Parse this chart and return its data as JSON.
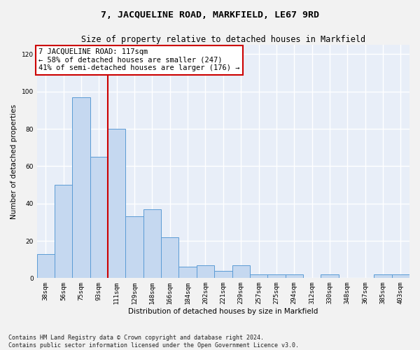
{
  "title": "7, JACQUELINE ROAD, MARKFIELD, LE67 9RD",
  "subtitle": "Size of property relative to detached houses in Markfield",
  "xlabel": "Distribution of detached houses by size in Markfield",
  "ylabel": "Number of detached properties",
  "categories": [
    "38sqm",
    "56sqm",
    "75sqm",
    "93sqm",
    "111sqm",
    "129sqm",
    "148sqm",
    "166sqm",
    "184sqm",
    "202sqm",
    "221sqm",
    "239sqm",
    "257sqm",
    "275sqm",
    "294sqm",
    "312sqm",
    "330sqm",
    "348sqm",
    "367sqm",
    "385sqm",
    "403sqm"
  ],
  "values": [
    13,
    50,
    97,
    65,
    80,
    33,
    37,
    22,
    6,
    7,
    4,
    7,
    2,
    2,
    2,
    0,
    2,
    0,
    0,
    2,
    2
  ],
  "bar_color": "#c5d8f0",
  "bar_edge_color": "#5b9bd5",
  "vline_color": "#cc0000",
  "annotation_text": "7 JACQUELINE ROAD: 117sqm\n← 58% of detached houses are smaller (247)\n41% of semi-detached houses are larger (176) →",
  "annotation_box_color": "#cc0000",
  "ylim": [
    0,
    125
  ],
  "yticks": [
    0,
    20,
    40,
    60,
    80,
    100,
    120
  ],
  "footer": "Contains HM Land Registry data © Crown copyright and database right 2024.\nContains public sector information licensed under the Open Government Licence v3.0.",
  "bg_color": "#e8eef8",
  "grid_color": "#ffffff",
  "fig_bg_color": "#f2f2f2",
  "title_fontsize": 9.5,
  "subtitle_fontsize": 8.5,
  "axis_label_fontsize": 7.5,
  "tick_fontsize": 6.5,
  "footer_fontsize": 6,
  "annotation_fontsize": 7.5
}
